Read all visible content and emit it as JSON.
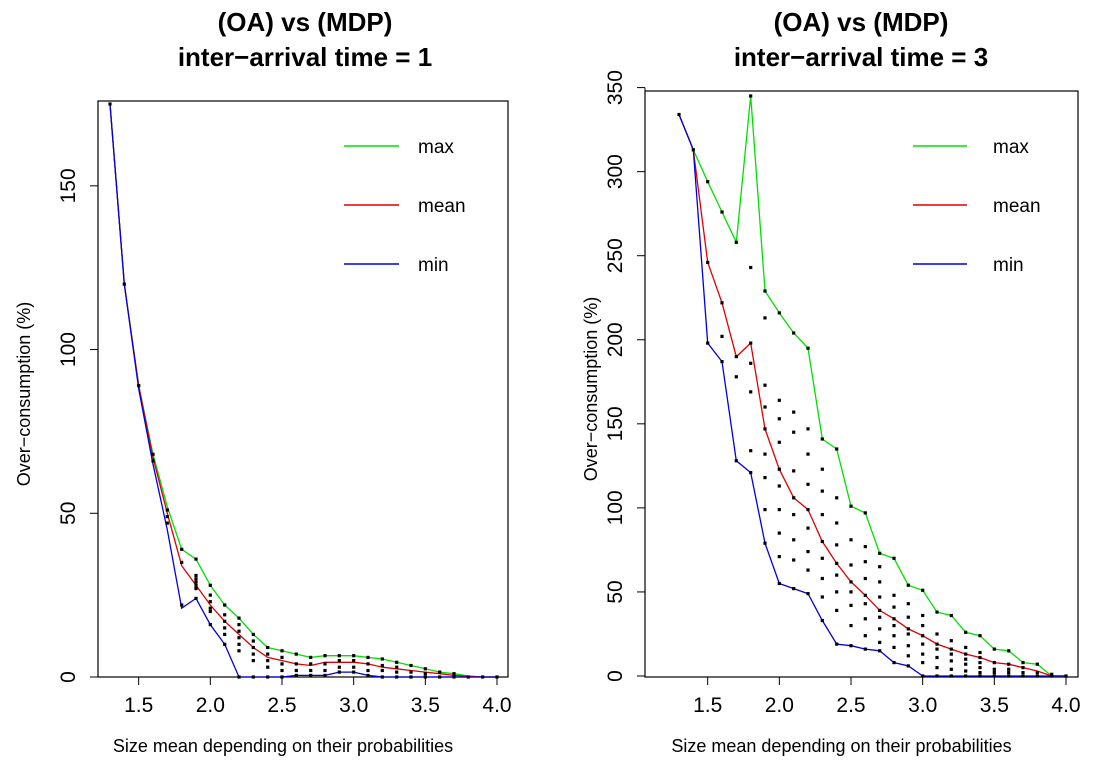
{
  "chart_data": [
    {
      "type": "line",
      "title": [
        "(OA) vs (MDP)",
        "inter−arrival time = 1"
      ],
      "xlabel": "Size mean depending on their probabilities",
      "ylabel": "Over−consumption (%)",
      "xlim": [
        1.3,
        4.0
      ],
      "ylim": [
        0,
        175
      ],
      "xticks": [
        1.5,
        2.0,
        2.5,
        3.0,
        3.5,
        4.0
      ],
      "xtick_labels": [
        "1.5",
        "2.0",
        "2.5",
        "3.0",
        "3.5",
        "4.0"
      ],
      "yticks": [
        0,
        50,
        100,
        150
      ],
      "ytick_labels": [
        "0",
        "50",
        "100",
        "150"
      ],
      "legend_position": "top-right",
      "x": [
        1.3,
        1.4,
        1.5,
        1.6,
        1.7,
        1.8,
        1.9,
        2.0,
        2.1,
        2.2,
        2.3,
        2.4,
        2.5,
        2.6,
        2.7,
        2.8,
        2.9,
        3.0,
        3.1,
        3.2,
        3.3,
        3.4,
        3.5,
        3.6,
        3.7,
        3.8,
        3.9,
        4.0
      ],
      "series": [
        {
          "name": "max",
          "color": "#00e000",
          "values": [
            175,
            120,
            89,
            68,
            52,
            39,
            36,
            28,
            22,
            18,
            13,
            9,
            8,
            7,
            6,
            6.5,
            6.5,
            6.5,
            6,
            5.5,
            4.5,
            3.5,
            2.5,
            1.5,
            1,
            0.3,
            0,
            0
          ]
        },
        {
          "name": "mean",
          "color": "#e00000",
          "values": [
            175,
            120,
            89,
            67,
            50,
            34,
            28,
            22,
            17,
            13,
            9,
            6,
            5,
            4,
            3.5,
            4.5,
            4.5,
            4.5,
            4,
            3,
            2.5,
            2,
            1.5,
            1,
            0.5,
            0.2,
            0,
            0
          ]
        },
        {
          "name": "min",
          "color": "#0000e0",
          "values": [
            175,
            120,
            88,
            65,
            45,
            21,
            24,
            16,
            10,
            0,
            0,
            0,
            0,
            0.5,
            0.5,
            0.5,
            1.5,
            1.5,
            0.5,
            0,
            0,
            0,
            0,
            0,
            0,
            0,
            0,
            0
          ]
        }
      ],
      "scatter": [
        [
          1.3,
          175
        ],
        [
          1.4,
          120
        ],
        [
          1.5,
          89
        ],
        [
          1.6,
          66
        ],
        [
          1.6,
          68
        ],
        [
          1.7,
          47
        ],
        [
          1.7,
          49
        ],
        [
          1.7,
          51
        ],
        [
          1.8,
          22
        ],
        [
          1.8,
          35
        ],
        [
          1.8,
          39
        ],
        [
          1.9,
          24
        ],
        [
          1.9,
          27
        ],
        [
          1.9,
          28
        ],
        [
          1.9,
          29
        ],
        [
          1.9,
          30
        ],
        [
          1.9,
          31
        ],
        [
          1.9,
          36
        ],
        [
          2.0,
          16
        ],
        [
          2.0,
          20
        ],
        [
          2.0,
          21
        ],
        [
          2.0,
          23
        ],
        [
          2.0,
          25
        ],
        [
          2.0,
          28
        ],
        [
          2.1,
          10
        ],
        [
          2.1,
          13
        ],
        [
          2.1,
          15
        ],
        [
          2.1,
          17
        ],
        [
          2.1,
          19
        ],
        [
          2.1,
          22
        ],
        [
          2.2,
          0
        ],
        [
          2.2,
          8
        ],
        [
          2.2,
          10
        ],
        [
          2.2,
          12
        ],
        [
          2.2,
          14
        ],
        [
          2.2,
          16
        ],
        [
          2.2,
          18
        ],
        [
          2.3,
          0
        ],
        [
          2.3,
          5
        ],
        [
          2.3,
          7
        ],
        [
          2.3,
          9
        ],
        [
          2.3,
          11
        ],
        [
          2.3,
          13
        ],
        [
          2.4,
          0
        ],
        [
          2.4,
          3
        ],
        [
          2.4,
          5
        ],
        [
          2.4,
          7
        ],
        [
          2.4,
          9
        ],
        [
          2.5,
          0
        ],
        [
          2.5,
          2
        ],
        [
          2.5,
          4
        ],
        [
          2.5,
          6
        ],
        [
          2.5,
          8
        ],
        [
          2.6,
          0.5
        ],
        [
          2.6,
          2
        ],
        [
          2.6,
          4
        ],
        [
          2.6,
          7
        ],
        [
          2.7,
          0.5
        ],
        [
          2.7,
          2
        ],
        [
          2.7,
          4
        ],
        [
          2.7,
          6
        ],
        [
          2.8,
          0.5
        ],
        [
          2.8,
          2
        ],
        [
          2.8,
          4
        ],
        [
          2.8,
          6.5
        ],
        [
          2.9,
          1.5
        ],
        [
          2.9,
          3
        ],
        [
          2.9,
          5
        ],
        [
          2.9,
          6.5
        ],
        [
          3.0,
          1.5
        ],
        [
          3.0,
          3
        ],
        [
          3.0,
          5
        ],
        [
          3.0,
          6.5
        ],
        [
          3.1,
          0.5
        ],
        [
          3.1,
          2
        ],
        [
          3.1,
          4
        ],
        [
          3.1,
          6
        ],
        [
          3.2,
          0
        ],
        [
          3.2,
          2
        ],
        [
          3.2,
          3.5
        ],
        [
          3.2,
          5.5
        ],
        [
          3.3,
          0
        ],
        [
          3.3,
          1.5
        ],
        [
          3.3,
          3
        ],
        [
          3.3,
          4.5
        ],
        [
          3.4,
          0
        ],
        [
          3.4,
          1.5
        ],
        [
          3.4,
          3.5
        ],
        [
          3.5,
          0
        ],
        [
          3.5,
          1
        ],
        [
          3.5,
          2.5
        ],
        [
          3.6,
          0
        ],
        [
          3.6,
          1.5
        ],
        [
          3.7,
          0
        ],
        [
          3.7,
          1
        ],
        [
          3.8,
          0
        ],
        [
          3.9,
          0
        ],
        [
          4.0,
          0
        ]
      ]
    },
    {
      "type": "line",
      "title": [
        "(OA) vs (MDP)",
        "inter−arrival time = 3"
      ],
      "xlabel": "Size mean depending on their probabilities",
      "ylabel": "Over−consumption (%)",
      "xlim": [
        1.3,
        4.0
      ],
      "ylim": [
        0,
        345
      ],
      "xticks": [
        1.5,
        2.0,
        2.5,
        3.0,
        3.5,
        4.0
      ],
      "xtick_labels": [
        "1.5",
        "2.0",
        "2.5",
        "3.0",
        "3.5",
        "4.0"
      ],
      "yticks": [
        0,
        50,
        100,
        150,
        200,
        250,
        300,
        350
      ],
      "ytick_labels": [
        "0",
        "50",
        "100",
        "150",
        "200",
        "250",
        "300",
        "350"
      ],
      "legend_position": "top-right",
      "x": [
        1.3,
        1.4,
        1.5,
        1.6,
        1.7,
        1.8,
        1.9,
        2.0,
        2.1,
        2.2,
        2.3,
        2.4,
        2.5,
        2.6,
        2.7,
        2.8,
        2.9,
        3.0,
        3.1,
        3.2,
        3.3,
        3.4,
        3.5,
        3.6,
        3.7,
        3.8,
        3.9,
        4.0
      ],
      "series": [
        {
          "name": "max",
          "color": "#00e000",
          "values": [
            334,
            313,
            294,
            276,
            258,
            345,
            229,
            216,
            204,
            195,
            141,
            135,
            101,
            97,
            73,
            70,
            54,
            51,
            38,
            36,
            26,
            24,
            16,
            15,
            8,
            7,
            0,
            0
          ]
        },
        {
          "name": "mean",
          "color": "#e00000",
          "values": [
            334,
            313,
            246,
            222,
            190,
            198,
            147,
            123,
            106,
            99,
            80,
            67,
            56,
            48,
            39,
            34,
            28,
            24,
            19,
            16,
            13,
            11,
            8,
            7,
            5,
            3,
            0,
            0
          ]
        },
        {
          "name": "min",
          "color": "#0000e0",
          "values": [
            334,
            313,
            198,
            187,
            128,
            121,
            79,
            55,
            52,
            49,
            33,
            19,
            18,
            16,
            15,
            8,
            6,
            0,
            0,
            0,
            0,
            0,
            0,
            0,
            0,
            0,
            0,
            0
          ]
        }
      ],
      "scatter": [
        [
          1.3,
          334
        ],
        [
          1.4,
          313
        ],
        [
          1.5,
          198
        ],
        [
          1.5,
          246
        ],
        [
          1.5,
          294
        ],
        [
          1.6,
          187
        ],
        [
          1.6,
          202
        ],
        [
          1.6,
          222
        ],
        [
          1.6,
          276
        ],
        [
          1.7,
          128
        ],
        [
          1.7,
          178
        ],
        [
          1.7,
          190
        ],
        [
          1.7,
          258
        ],
        [
          1.8,
          121
        ],
        [
          1.8,
          134
        ],
        [
          1.8,
          169
        ],
        [
          1.8,
          186
        ],
        [
          1.8,
          198
        ],
        [
          1.8,
          243
        ],
        [
          1.8,
          345
        ],
        [
          1.9,
          79
        ],
        [
          1.9,
          99
        ],
        [
          1.9,
          118
        ],
        [
          1.9,
          132
        ],
        [
          1.9,
          147
        ],
        [
          1.9,
          160
        ],
        [
          1.9,
          173
        ],
        [
          1.9,
          213
        ],
        [
          1.9,
          229
        ],
        [
          2.0,
          55
        ],
        [
          2.0,
          71
        ],
        [
          2.0,
          85
        ],
        [
          2.0,
          99
        ],
        [
          2.0,
          113
        ],
        [
          2.0,
          123
        ],
        [
          2.0,
          139
        ],
        [
          2.0,
          153
        ],
        [
          2.0,
          164
        ],
        [
          2.0,
          216
        ],
        [
          2.1,
          52
        ],
        [
          2.1,
          69
        ],
        [
          2.1,
          81
        ],
        [
          2.1,
          96
        ],
        [
          2.1,
          106
        ],
        [
          2.1,
          122
        ],
        [
          2.1,
          145
        ],
        [
          2.1,
          157
        ],
        [
          2.1,
          204
        ],
        [
          2.2,
          49
        ],
        [
          2.2,
          63
        ],
        [
          2.2,
          74
        ],
        [
          2.2,
          88
        ],
        [
          2.2,
          99
        ],
        [
          2.2,
          114
        ],
        [
          2.2,
          132
        ],
        [
          2.2,
          147
        ],
        [
          2.2,
          195
        ],
        [
          2.3,
          33
        ],
        [
          2.3,
          47
        ],
        [
          2.3,
          58
        ],
        [
          2.3,
          70
        ],
        [
          2.3,
          80
        ],
        [
          2.3,
          96
        ],
        [
          2.3,
          110
        ],
        [
          2.3,
          123
        ],
        [
          2.3,
          141
        ],
        [
          2.4,
          19
        ],
        [
          2.4,
          39
        ],
        [
          2.4,
          50
        ],
        [
          2.4,
          60
        ],
        [
          2.4,
          67
        ],
        [
          2.4,
          78
        ],
        [
          2.4,
          91
        ],
        [
          2.4,
          106
        ],
        [
          2.4,
          135
        ],
        [
          2.5,
          18
        ],
        [
          2.5,
          30
        ],
        [
          2.5,
          42
        ],
        [
          2.5,
          50
        ],
        [
          2.5,
          56
        ],
        [
          2.5,
          66
        ],
        [
          2.5,
          81
        ],
        [
          2.5,
          101
        ],
        [
          2.6,
          16
        ],
        [
          2.6,
          24
        ],
        [
          2.6,
          34
        ],
        [
          2.6,
          43
        ],
        [
          2.6,
          48
        ],
        [
          2.6,
          58
        ],
        [
          2.6,
          68
        ],
        [
          2.6,
          77
        ],
        [
          2.6,
          97
        ],
        [
          2.7,
          15
        ],
        [
          2.7,
          20
        ],
        [
          2.7,
          28
        ],
        [
          2.7,
          35
        ],
        [
          2.7,
          39
        ],
        [
          2.7,
          47
        ],
        [
          2.7,
          56
        ],
        [
          2.7,
          65
        ],
        [
          2.7,
          73
        ],
        [
          2.8,
          8
        ],
        [
          2.8,
          17
        ],
        [
          2.8,
          24
        ],
        [
          2.8,
          30
        ],
        [
          2.8,
          34
        ],
        [
          2.8,
          41
        ],
        [
          2.8,
          48
        ],
        [
          2.8,
          70
        ],
        [
          2.9,
          6
        ],
        [
          2.9,
          12
        ],
        [
          2.9,
          18
        ],
        [
          2.9,
          25
        ],
        [
          2.9,
          28
        ],
        [
          2.9,
          35
        ],
        [
          2.9,
          43
        ],
        [
          2.9,
          54
        ],
        [
          3.0,
          0
        ],
        [
          3.0,
          8
        ],
        [
          3.0,
          13
        ],
        [
          3.0,
          19
        ],
        [
          3.0,
          24
        ],
        [
          3.0,
          30
        ],
        [
          3.0,
          36
        ],
        [
          3.0,
          51
        ],
        [
          3.1,
          0
        ],
        [
          3.1,
          5
        ],
        [
          3.1,
          11
        ],
        [
          3.1,
          16
        ],
        [
          3.1,
          19
        ],
        [
          3.1,
          25
        ],
        [
          3.1,
          38
        ],
        [
          3.2,
          0
        ],
        [
          3.2,
          4
        ],
        [
          3.2,
          9
        ],
        [
          3.2,
          13
        ],
        [
          3.2,
          16
        ],
        [
          3.2,
          21
        ],
        [
          3.2,
          36
        ],
        [
          3.3,
          0
        ],
        [
          3.3,
          3
        ],
        [
          3.3,
          7
        ],
        [
          3.3,
          10
        ],
        [
          3.3,
          13
        ],
        [
          3.3,
          17
        ],
        [
          3.3,
          26
        ],
        [
          3.4,
          0
        ],
        [
          3.4,
          2
        ],
        [
          3.4,
          5
        ],
        [
          3.4,
          8
        ],
        [
          3.4,
          11
        ],
        [
          3.4,
          14
        ],
        [
          3.4,
          24
        ],
        [
          3.5,
          0
        ],
        [
          3.5,
          2
        ],
        [
          3.5,
          4
        ],
        [
          3.5,
          8
        ],
        [
          3.5,
          16
        ],
        [
          3.6,
          0
        ],
        [
          3.6,
          2
        ],
        [
          3.6,
          4
        ],
        [
          3.6,
          7
        ],
        [
          3.6,
          15
        ],
        [
          3.7,
          0
        ],
        [
          3.7,
          2
        ],
        [
          3.7,
          5
        ],
        [
          3.7,
          8
        ],
        [
          3.8,
          0
        ],
        [
          3.8,
          2
        ],
        [
          3.8,
          7
        ],
        [
          3.9,
          0
        ],
        [
          3.9,
          1
        ],
        [
          4.0,
          0
        ]
      ]
    }
  ]
}
